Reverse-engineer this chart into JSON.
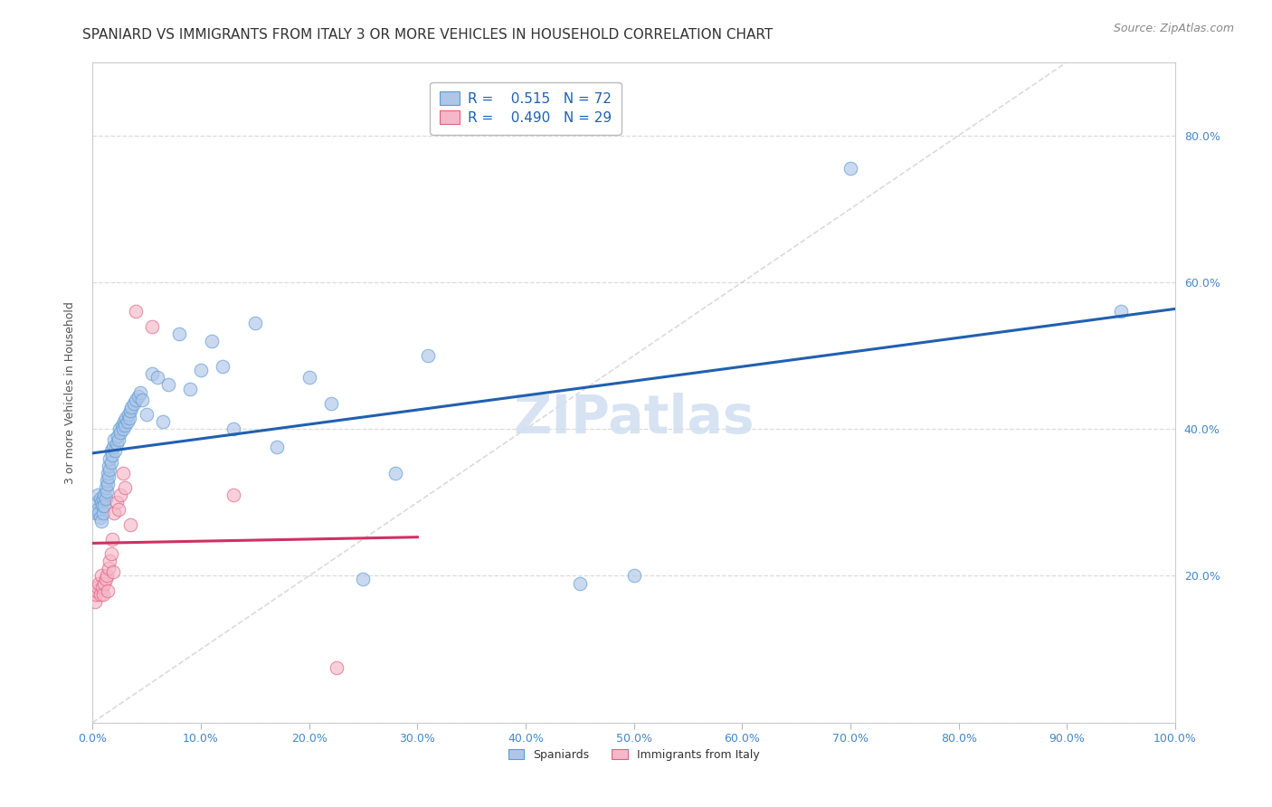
{
  "title": "SPANIARD VS IMMIGRANTS FROM ITALY 3 OR MORE VEHICLES IN HOUSEHOLD CORRELATION CHART",
  "source": "Source: ZipAtlas.com",
  "ylabel": "3 or more Vehicles in Household",
  "legend_r1": "R = ",
  "legend_v1": "0.515",
  "legend_n1": "N = ",
  "legend_nv1": "72",
  "legend_r2": "R = ",
  "legend_v2": "0.490",
  "legend_n2": "N = ",
  "legend_nv2": "29",
  "blue_fill": "#aec6e8",
  "pink_fill": "#f5b8c8",
  "blue_edge": "#5b9bd5",
  "pink_edge": "#e06080",
  "blue_line": "#2060b0",
  "pink_line": "#d03060",
  "diag_color": "#cccccc",
  "watermark_color": "#d0dff0",
  "watermark_text": "ZIPatlas",
  "tick_color": "#4488cc",
  "grid_color": "#d8d8d8",
  "title_color": "#333333",
  "ylabel_color": "#555555",
  "source_color": "#888888",
  "background": "#ffffff",
  "spaniards_x": [
    0.003,
    0.004,
    0.005,
    0.005,
    0.006,
    0.007,
    0.007,
    0.008,
    0.008,
    0.009,
    0.01,
    0.01,
    0.011,
    0.011,
    0.012,
    0.012,
    0.013,
    0.013,
    0.014,
    0.014,
    0.015,
    0.015,
    0.016,
    0.016,
    0.017,
    0.017,
    0.018,
    0.019,
    0.02,
    0.021,
    0.022,
    0.023,
    0.024,
    0.025,
    0.026,
    0.027,
    0.028,
    0.029,
    0.03,
    0.031,
    0.032,
    0.033,
    0.034,
    0.035,
    0.036,
    0.038,
    0.04,
    0.042,
    0.044,
    0.046,
    0.05,
    0.055,
    0.06,
    0.065,
    0.07,
    0.08,
    0.09,
    0.1,
    0.11,
    0.12,
    0.13,
    0.15,
    0.17,
    0.2,
    0.22,
    0.25,
    0.28,
    0.31,
    0.45,
    0.5,
    0.7,
    0.95
  ],
  "spaniards_y": [
    0.285,
    0.3,
    0.29,
    0.31,
    0.285,
    0.28,
    0.305,
    0.275,
    0.3,
    0.295,
    0.285,
    0.305,
    0.31,
    0.295,
    0.305,
    0.32,
    0.315,
    0.33,
    0.325,
    0.34,
    0.335,
    0.35,
    0.345,
    0.36,
    0.355,
    0.37,
    0.365,
    0.375,
    0.385,
    0.37,
    0.38,
    0.39,
    0.385,
    0.4,
    0.395,
    0.405,
    0.4,
    0.41,
    0.405,
    0.415,
    0.41,
    0.42,
    0.415,
    0.425,
    0.43,
    0.435,
    0.44,
    0.445,
    0.45,
    0.44,
    0.42,
    0.475,
    0.47,
    0.41,
    0.46,
    0.53,
    0.455,
    0.48,
    0.52,
    0.485,
    0.4,
    0.545,
    0.375,
    0.47,
    0.435,
    0.195,
    0.34,
    0.5,
    0.19,
    0.2,
    0.755,
    0.56
  ],
  "italy_x": [
    0.002,
    0.003,
    0.004,
    0.005,
    0.006,
    0.007,
    0.008,
    0.009,
    0.01,
    0.011,
    0.012,
    0.013,
    0.014,
    0.015,
    0.016,
    0.017,
    0.018,
    0.019,
    0.02,
    0.022,
    0.024,
    0.026,
    0.028,
    0.03,
    0.035,
    0.04,
    0.055,
    0.13,
    0.225
  ],
  "italy_y": [
    0.165,
    0.175,
    0.18,
    0.185,
    0.19,
    0.175,
    0.2,
    0.185,
    0.175,
    0.19,
    0.195,
    0.2,
    0.18,
    0.21,
    0.22,
    0.23,
    0.25,
    0.205,
    0.285,
    0.3,
    0.29,
    0.31,
    0.34,
    0.32,
    0.27,
    0.56,
    0.54,
    0.31,
    0.075
  ],
  "xlim": [
    0.0,
    1.0
  ],
  "ylim": [
    0.0,
    0.9
  ],
  "xticks": [
    0.0,
    0.1,
    0.2,
    0.3,
    0.4,
    0.5,
    0.6,
    0.7,
    0.8,
    0.9,
    1.0
  ],
  "yticks_right": [
    0.2,
    0.4,
    0.6,
    0.8
  ],
  "ytick_labels": [
    "20.0%",
    "40.0%",
    "60.0%",
    "80.0%"
  ],
  "marker_size": 110,
  "marker_alpha": 0.65,
  "title_fontsize": 11,
  "source_fontsize": 9,
  "tick_fontsize": 9,
  "legend_fontsize": 11,
  "ylabel_fontsize": 9,
  "watermark_fontsize": 42
}
